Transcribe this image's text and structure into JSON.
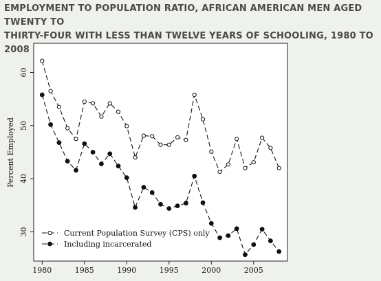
{
  "chart_data": {
    "type": "line",
    "title_lines": [
      "EMPLOYMENT TO POPULATION RATIO, AFRICAN AMERICAN MEN AGED TWENTY TO",
      "THIRTY-FOUR WITH LESS THAN TWELVE YEARS OF SCHOOLING, 1980 TO 2008"
    ],
    "xlabel": "",
    "ylabel": "Percent Employed",
    "xlim": [
      1979,
      2009
    ],
    "ylim": [
      24.5,
      65.5
    ],
    "xticks": [
      1980,
      1985,
      1990,
      1995,
      2000,
      2005
    ],
    "yticks": [
      30,
      40,
      50,
      60
    ],
    "grid": false,
    "legend_position": "bottom-left",
    "x": [
      1980,
      1981,
      1982,
      1983,
      1984,
      1985,
      1986,
      1987,
      1988,
      1989,
      1990,
      1991,
      1992,
      1993,
      1994,
      1995,
      1996,
      1997,
      1998,
      1999,
      2000,
      2001,
      2002,
      2003,
      2004,
      2005,
      2006,
      2007,
      2008
    ],
    "series": [
      {
        "name": "Current Population Survey (CPS) only",
        "marker": "open-circle",
        "values": [
          62.2,
          56.5,
          53.5,
          49.5,
          47.5,
          54.5,
          54.2,
          51.7,
          54.2,
          52.6,
          49.9,
          44.0,
          48.1,
          48.0,
          46.4,
          46.4,
          47.8,
          47.3,
          55.8,
          51.2,
          45.1,
          41.3,
          42.7,
          47.5,
          42.0,
          43.1,
          47.7,
          45.8,
          42.0
        ]
      },
      {
        "name": "Including incarcerated",
        "marker": "filled-circle",
        "values": [
          55.8,
          50.2,
          46.8,
          43.3,
          41.6,
          46.6,
          45.0,
          42.8,
          44.7,
          42.4,
          40.2,
          34.6,
          38.4,
          37.4,
          35.2,
          34.4,
          34.9,
          35.4,
          40.5,
          35.5,
          31.6,
          28.9,
          29.3,
          30.6,
          25.7,
          27.6,
          30.5,
          28.3,
          26.3
        ]
      }
    ]
  }
}
